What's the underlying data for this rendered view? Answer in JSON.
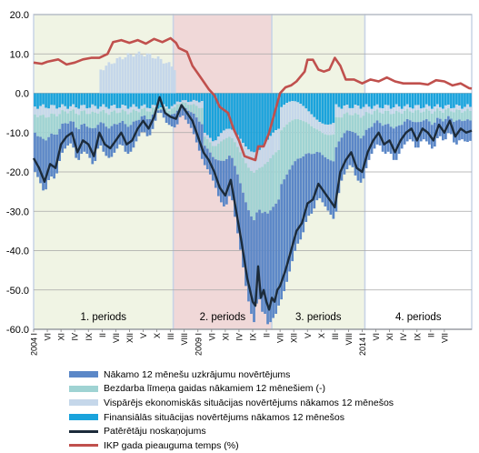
{
  "chart_data": {
    "type": "area",
    "ylim": [
      -60,
      20
    ],
    "yticks": [
      "20.0",
      "10.0",
      "0.0",
      "-10.0",
      "-20.0",
      "-30.0",
      "-40.0",
      "-50.0",
      "-60.0"
    ],
    "x_tick_labels": [
      "2004 I",
      "VI",
      "XI",
      "IV",
      "IX",
      "II",
      "VII",
      "XII",
      "V",
      "X",
      "III",
      "VIII",
      "2009 I",
      "VI",
      "XI",
      "IV",
      "IX",
      "II",
      "VII",
      "XII",
      "V",
      "X",
      "III",
      "VIII",
      "2014 I",
      "VI",
      "XI",
      "IV",
      "IX",
      "II",
      "VII"
    ],
    "periods": [
      {
        "label": "1. periods",
        "color": "#f0f4e4"
      },
      {
        "label": "2. periods",
        "color": "#f0d8d8"
      },
      {
        "label": "3. periods",
        "color": "#f0f4e4"
      },
      {
        "label": "4. periods",
        "color": "#ffffff"
      }
    ],
    "series": [
      {
        "name": "Nākamo 12 mēnešu uzkrājumu novērtējums",
        "color": "#5b87c7"
      },
      {
        "name": "Bezdarba līmeņa gaidas nākamiem 12 mēnešiem (-)",
        "color": "#9fd3d3"
      },
      {
        "name": "Vispārējs ekonomiskās situācijas novērtējums nākamos 12 mēnešos",
        "color": "#c5d7ea"
      },
      {
        "name": "Finansiālās situācijas novērtējums nākamos 12 mēnešos",
        "color": "#1aa3dc"
      },
      {
        "name": "Patērētāju noskaņojums",
        "color": "#1c2b3a"
      },
      {
        "name": "IKP gada pieauguma temps (%)",
        "color": "#c0504d"
      }
    ],
    "gdp_knots": [
      [
        0,
        7.8
      ],
      [
        3,
        7.5
      ],
      [
        5,
        8
      ],
      [
        9,
        8.6
      ],
      [
        12,
        7.3
      ],
      [
        15,
        7.8
      ],
      [
        18,
        8.6
      ],
      [
        21,
        9
      ],
      [
        24,
        9
      ],
      [
        27,
        10
      ],
      [
        29,
        13
      ],
      [
        32,
        13.5
      ],
      [
        35,
        12.8
      ],
      [
        38,
        13.5
      ],
      [
        41,
        12.6
      ],
      [
        44,
        13.8
      ],
      [
        47,
        13
      ],
      [
        50,
        14
      ],
      [
        52,
        12.8
      ],
      [
        53,
        11.5
      ],
      [
        56,
        10.5
      ],
      [
        58,
        7
      ],
      [
        60,
        5
      ],
      [
        62,
        3
      ],
      [
        64,
        1
      ],
      [
        66,
        -0.5
      ],
      [
        68,
        -3.5
      ],
      [
        71,
        -5
      ],
      [
        73,
        -9
      ],
      [
        75,
        -12
      ],
      [
        77,
        -16
      ],
      [
        79,
        -16.5
      ],
      [
        81,
        -17
      ],
      [
        82,
        -13.5
      ],
      [
        84,
        -13.5
      ],
      [
        86,
        -10
      ],
      [
        88,
        -5
      ],
      [
        90,
        0
      ],
      [
        92,
        1.5
      ],
      [
        94,
        2
      ],
      [
        96,
        3
      ],
      [
        99,
        5.5
      ],
      [
        100,
        8.5
      ],
      [
        102,
        8.5
      ],
      [
        104,
        6
      ],
      [
        106,
        5.5
      ],
      [
        108,
        6
      ],
      [
        110,
        9
      ],
      [
        112,
        7
      ],
      [
        114,
        3.5
      ],
      [
        117,
        3.5
      ],
      [
        120,
        2.5
      ],
      [
        123,
        3.5
      ],
      [
        126,
        3
      ],
      [
        129,
        4
      ],
      [
        132,
        3
      ],
      [
        135,
        2.5
      ],
      [
        138,
        2.5
      ],
      [
        141,
        2.5
      ],
      [
        144,
        2.2
      ],
      [
        147,
        3.3
      ],
      [
        150,
        3
      ],
      [
        153,
        2
      ],
      [
        156,
        2.5
      ],
      [
        159,
        1.3
      ],
      [
        160,
        1.2
      ]
    ],
    "sentiment_knots": [
      [
        0,
        -16.5
      ],
      [
        2,
        -19
      ],
      [
        4,
        -22.5
      ],
      [
        6,
        -18
      ],
      [
        8,
        -19
      ],
      [
        10,
        -13
      ],
      [
        12,
        -11
      ],
      [
        14,
        -10
      ],
      [
        16,
        -15
      ],
      [
        18,
        -12
      ],
      [
        20,
        -13
      ],
      [
        22,
        -16
      ],
      [
        24,
        -10
      ],
      [
        26,
        -13
      ],
      [
        28,
        -14
      ],
      [
        30,
        -12
      ],
      [
        32,
        -10
      ],
      [
        34,
        -13
      ],
      [
        36,
        -12
      ],
      [
        38,
        -9
      ],
      [
        40,
        -7
      ],
      [
        42,
        -9
      ],
      [
        44,
        -6
      ],
      [
        46,
        -1
      ],
      [
        48,
        -5
      ],
      [
        50,
        -6
      ],
      [
        52,
        -6.5
      ],
      [
        54,
        -3
      ],
      [
        56,
        -5
      ],
      [
        58,
        -7
      ],
      [
        60,
        -11
      ],
      [
        62,
        -15
      ],
      [
        64,
        -17
      ],
      [
        66,
        -20
      ],
      [
        68,
        -24
      ],
      [
        70,
        -26
      ],
      [
        72,
        -22
      ],
      [
        74,
        -30
      ],
      [
        76,
        -38
      ],
      [
        78,
        -47
      ],
      [
        80,
        -53
      ],
      [
        81,
        -54
      ],
      [
        82,
        -44
      ],
      [
        83,
        -52
      ],
      [
        84,
        -50
      ],
      [
        85,
        -53
      ],
      [
        86,
        -55
      ],
      [
        87,
        -52
      ],
      [
        88,
        -53
      ],
      [
        89,
        -50
      ],
      [
        90,
        -49
      ],
      [
        92,
        -45
      ],
      [
        94,
        -40
      ],
      [
        96,
        -35
      ],
      [
        98,
        -33
      ],
      [
        100,
        -28
      ],
      [
        102,
        -27
      ],
      [
        104,
        -23
      ],
      [
        106,
        -25
      ],
      [
        108,
        -27
      ],
      [
        110,
        -29
      ],
      [
        112,
        -20
      ],
      [
        114,
        -17
      ],
      [
        116,
        -15
      ],
      [
        118,
        -19
      ],
      [
        120,
        -20
      ],
      [
        122,
        -15
      ],
      [
        124,
        -12
      ],
      [
        126,
        -10
      ],
      [
        128,
        -13
      ],
      [
        130,
        -12
      ],
      [
        132,
        -15
      ],
      [
        134,
        -12
      ],
      [
        136,
        -10
      ],
      [
        138,
        -9
      ],
      [
        140,
        -12
      ],
      [
        142,
        -9
      ],
      [
        144,
        -10
      ],
      [
        146,
        -12
      ],
      [
        148,
        -8
      ],
      [
        150,
        -10
      ],
      [
        152,
        -7
      ],
      [
        154,
        -11
      ],
      [
        156,
        -9
      ],
      [
        158,
        -10
      ],
      [
        160,
        -9.5
      ]
    ]
  }
}
